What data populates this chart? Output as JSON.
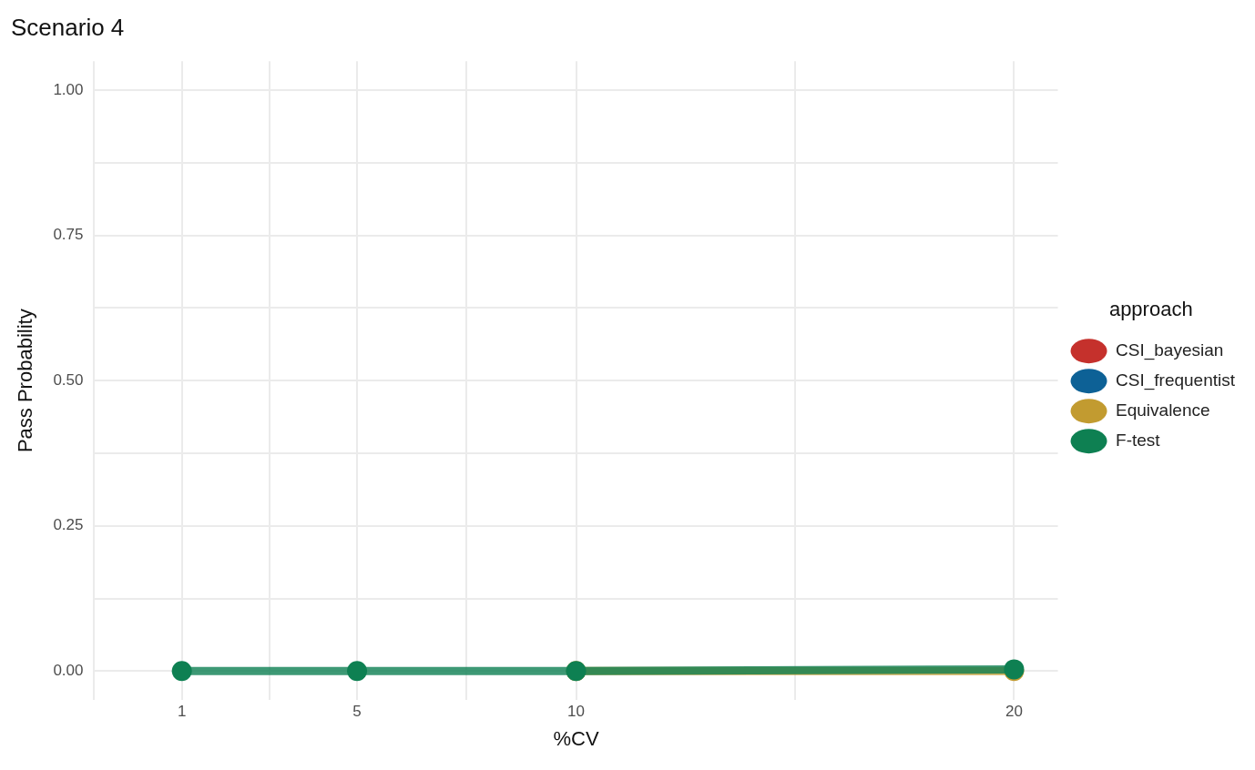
{
  "chart_data": {
    "type": "line",
    "title": "Scenario 4",
    "xlabel": "%CV",
    "ylabel": "Pass Probability",
    "legend_title": "approach",
    "legend": "right",
    "grid": true,
    "marker": "circle",
    "line_style": "solid",
    "x": [
      1,
      5,
      10,
      20
    ],
    "xlim": [
      -1,
      21
    ],
    "xticks": [
      {
        "value": -1,
        "label": null
      },
      1,
      {
        "value": 3,
        "label": null
      },
      5,
      {
        "value": 7.5,
        "label": null
      },
      10,
      {
        "value": 15,
        "label": null
      },
      20
    ],
    "ylim": [
      -0.05,
      1.05
    ],
    "yticks": [
      {
        "value": 0,
        "label": "0.00"
      },
      {
        "value": 0.125,
        "label": null
      },
      {
        "value": 0.25,
        "label": "0.25"
      },
      {
        "value": 0.375,
        "label": null
      },
      {
        "value": 0.5,
        "label": "0.50"
      },
      {
        "value": 0.625,
        "label": null
      },
      {
        "value": 0.75,
        "label": "0.75"
      },
      {
        "value": 0.875,
        "label": null
      },
      {
        "value": 1,
        "label": "1.00"
      }
    ],
    "series": [
      {
        "name": "CSI_bayesian",
        "color": "#c5312c",
        "values": [
          null,
          null,
          null,
          null
        ]
      },
      {
        "name": "CSI_frequentist",
        "color": "#0d6196",
        "values": [
          null,
          null,
          null,
          null
        ]
      },
      {
        "name": "Equivalence",
        "color": "#c29b30",
        "values": [
          null,
          null,
          0,
          0
        ]
      },
      {
        "name": "F-test",
        "color": "#0e8052",
        "values": [
          0,
          0,
          0,
          0.003
        ]
      }
    ]
  }
}
